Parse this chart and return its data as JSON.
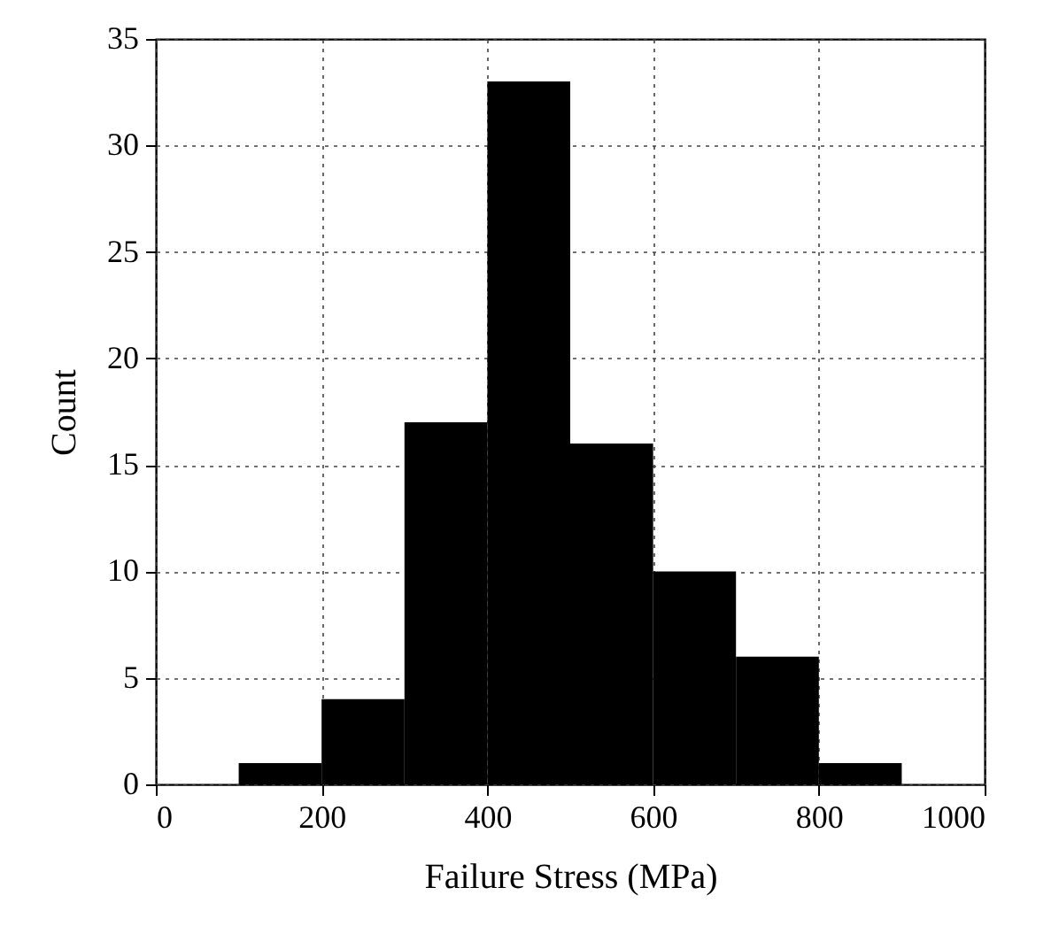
{
  "chart_data": {
    "type": "histogram",
    "xlabel": "Failure Stress (MPa)",
    "ylabel": "Count",
    "bins": [
      100,
      200,
      300,
      400,
      500,
      600,
      700,
      800,
      900
    ],
    "values": [
      1,
      4,
      17,
      33,
      16,
      10,
      6,
      1
    ],
    "color": "#000000",
    "xlim": [
      0,
      1000
    ],
    "xticks": [
      0,
      200,
      400,
      600,
      800,
      1000
    ],
    "ylim": [
      0,
      35
    ],
    "yticks": [
      0,
      5,
      10,
      15,
      20,
      25,
      30,
      35
    ],
    "grid": true
  }
}
